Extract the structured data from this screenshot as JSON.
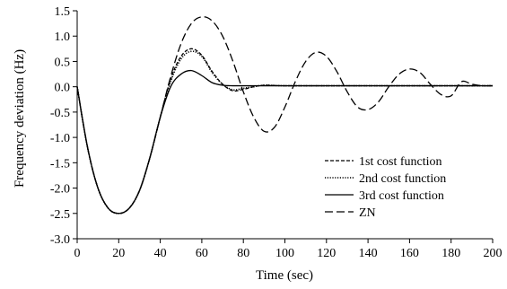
{
  "chart_data": {
    "type": "line",
    "title": "",
    "xlabel": "Time (sec)",
    "ylabel": "Frequency deviation (Hz)",
    "xlim": [
      0,
      200
    ],
    "ylim": [
      -3.0,
      1.5
    ],
    "x_ticks": [
      "0",
      "20",
      "40",
      "60",
      "80",
      "100",
      "120",
      "140",
      "160",
      "180",
      "200"
    ],
    "y_ticks": [
      "1.5",
      "1.0",
      "0.5",
      "0.0",
      "-0.5",
      "-1.0",
      "-1.5",
      "-2.0",
      "-2.5",
      "-3.0"
    ],
    "grid": false,
    "legend_position": "bottom-right",
    "series": [
      {
        "name": "1st cost function",
        "style": "dashed-short",
        "color": "#000000",
        "x": [
          0,
          5,
          10,
          15,
          20,
          25,
          30,
          35,
          40,
          45,
          50,
          55,
          60,
          65,
          70,
          75,
          80,
          85,
          90,
          100,
          120,
          140,
          160,
          180,
          200
        ],
        "y": [
          0.0,
          -1.2,
          -2.0,
          -2.4,
          -2.5,
          -2.4,
          -2.05,
          -1.4,
          -0.6,
          0.15,
          0.6,
          0.75,
          0.62,
          0.3,
          0.05,
          -0.08,
          -0.05,
          0.0,
          0.03,
          0.02,
          0.02,
          0.02,
          0.02,
          0.02,
          0.02
        ]
      },
      {
        "name": "2nd cost function",
        "style": "dotted",
        "color": "#000000",
        "x": [
          0,
          5,
          10,
          15,
          20,
          25,
          30,
          35,
          40,
          45,
          50,
          55,
          60,
          65,
          70,
          75,
          80,
          85,
          90,
          100,
          120,
          140,
          160,
          180,
          200
        ],
        "y": [
          0.0,
          -1.2,
          -2.0,
          -2.4,
          -2.5,
          -2.4,
          -2.05,
          -1.4,
          -0.6,
          0.1,
          0.55,
          0.7,
          0.6,
          0.28,
          0.05,
          -0.06,
          -0.03,
          0.0,
          0.03,
          0.02,
          0.02,
          0.02,
          0.02,
          0.02,
          0.02
        ]
      },
      {
        "name": "3rd cost function",
        "style": "solid",
        "color": "#000000",
        "x": [
          0,
          5,
          10,
          15,
          20,
          25,
          30,
          35,
          40,
          45,
          50,
          55,
          60,
          65,
          70,
          75,
          80,
          90,
          100,
          200
        ],
        "y": [
          0.0,
          -1.2,
          -2.0,
          -2.4,
          -2.5,
          -2.4,
          -2.05,
          -1.4,
          -0.6,
          0.0,
          0.25,
          0.32,
          0.22,
          0.08,
          0.03,
          0.02,
          0.02,
          0.02,
          0.02,
          0.02
        ]
      },
      {
        "name": "ZN",
        "style": "dashed-long",
        "color": "#000000",
        "x": [
          0,
          5,
          10,
          15,
          20,
          25,
          30,
          35,
          40,
          45,
          50,
          55,
          60,
          65,
          70,
          75,
          80,
          85,
          90,
          95,
          100,
          105,
          110,
          115,
          120,
          125,
          130,
          135,
          140,
          145,
          150,
          155,
          160,
          165,
          170,
          175,
          180,
          185,
          190,
          195,
          200
        ],
        "y": [
          0.0,
          -1.2,
          -2.0,
          -2.4,
          -2.5,
          -2.4,
          -2.05,
          -1.4,
          -0.6,
          0.2,
          0.85,
          1.25,
          1.38,
          1.3,
          1.0,
          0.5,
          -0.1,
          -0.6,
          -0.88,
          -0.8,
          -0.4,
          0.1,
          0.5,
          0.68,
          0.6,
          0.3,
          -0.1,
          -0.4,
          -0.45,
          -0.3,
          0.0,
          0.25,
          0.35,
          0.28,
          0.05,
          -0.15,
          -0.18,
          0.1,
          0.05,
          0.02,
          0.02
        ]
      }
    ]
  }
}
